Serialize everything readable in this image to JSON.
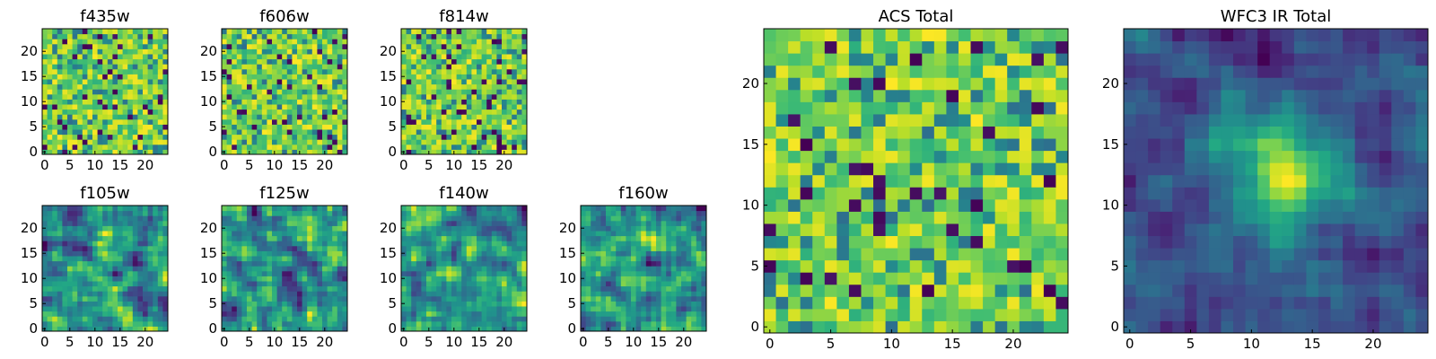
{
  "chart_data": [
    {
      "type": "heatmap",
      "title": "f435w",
      "xticks": [
        "0",
        "5",
        "10",
        "15",
        "20"
      ],
      "yticks": [
        "0",
        "5",
        "10",
        "15",
        "20"
      ],
      "colormap": "viridis",
      "grid_size": 25,
      "xlim": [
        0,
        25
      ],
      "ylim": [
        0,
        25
      ],
      "texture": "noisy"
    },
    {
      "type": "heatmap",
      "title": "f606w",
      "xticks": [
        "0",
        "5",
        "10",
        "15",
        "20"
      ],
      "yticks": [
        "0",
        "5",
        "10",
        "15",
        "20"
      ],
      "colormap": "viridis",
      "grid_size": 25,
      "xlim": [
        0,
        25
      ],
      "ylim": [
        0,
        25
      ],
      "texture": "noisy"
    },
    {
      "type": "heatmap",
      "title": "f814w",
      "xticks": [
        "0",
        "5",
        "10",
        "15",
        "20"
      ],
      "yticks": [
        "0",
        "5",
        "10",
        "15",
        "20"
      ],
      "colormap": "viridis",
      "grid_size": 25,
      "xlim": [
        0,
        25
      ],
      "ylim": [
        0,
        25
      ],
      "texture": "noisy"
    },
    {
      "type": "heatmap",
      "title": "f105w",
      "xticks": [
        "0",
        "5",
        "10",
        "15",
        "20"
      ],
      "yticks": [
        "0",
        "5",
        "10",
        "15",
        "20"
      ],
      "colormap": "viridis",
      "grid_size": 25,
      "xlim": [
        0,
        25
      ],
      "ylim": [
        0,
        25
      ],
      "texture": "smooth"
    },
    {
      "type": "heatmap",
      "title": "f125w",
      "xticks": [
        "0",
        "5",
        "10",
        "15",
        "20"
      ],
      "yticks": [
        "0",
        "5",
        "10",
        "15",
        "20"
      ],
      "colormap": "viridis",
      "grid_size": 25,
      "xlim": [
        0,
        25
      ],
      "ylim": [
        0,
        25
      ],
      "texture": "smooth"
    },
    {
      "type": "heatmap",
      "title": "f140w",
      "xticks": [
        "0",
        "5",
        "10",
        "15",
        "20"
      ],
      "yticks": [
        "0",
        "5",
        "10",
        "15",
        "20"
      ],
      "colormap": "viridis",
      "grid_size": 25,
      "xlim": [
        0,
        25
      ],
      "ylim": [
        0,
        25
      ],
      "texture": "smooth"
    },
    {
      "type": "heatmap",
      "title": "f160w",
      "xticks": [
        "0",
        "5",
        "10",
        "15",
        "20"
      ],
      "yticks": [
        "0",
        "5",
        "10",
        "15",
        "20"
      ],
      "colormap": "viridis",
      "grid_size": 25,
      "xlim": [
        0,
        25
      ],
      "ylim": [
        0,
        25
      ],
      "texture": "smooth"
    },
    {
      "type": "heatmap",
      "title": "ACS Total",
      "xticks": [
        "0",
        "5",
        "10",
        "15",
        "20"
      ],
      "yticks": [
        "0",
        "5",
        "10",
        "15",
        "20"
      ],
      "colormap": "viridis",
      "grid_size": 25,
      "xlim": [
        0,
        25
      ],
      "ylim": [
        0,
        25
      ],
      "texture": "noisy"
    },
    {
      "type": "heatmap",
      "title": "WFC3 IR Total",
      "xticks": [
        "0",
        "5",
        "10",
        "15",
        "20"
      ],
      "yticks": [
        "0",
        "5",
        "10",
        "15",
        "20"
      ],
      "colormap": "viridis",
      "grid_size": 25,
      "xlim": [
        0,
        25
      ],
      "ylim": [
        0,
        25
      ],
      "texture": "centered-peak"
    }
  ]
}
